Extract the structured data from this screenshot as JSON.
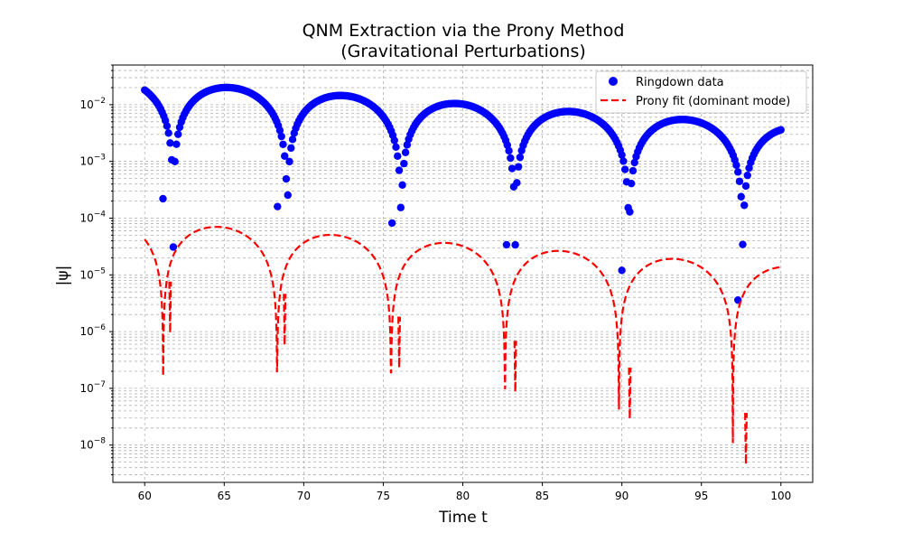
{
  "chart_data": {
    "type": "scatter",
    "title_line1": "QNM Extraction via the Prony Method",
    "title_line2": "(Gravitational Perturbations)",
    "xlabel": "Time t",
    "ylabel": "|ψ|",
    "xlim": [
      58,
      102
    ],
    "ylim": [
      2.2e-09,
      0.05
    ],
    "yscale": "log",
    "grid": true,
    "legend_position": "top-right",
    "x_ticks": [
      60,
      65,
      70,
      75,
      80,
      85,
      90,
      95,
      100
    ],
    "x_tick_labels": [
      "60",
      "65",
      "70",
      "75",
      "80",
      "85",
      "90",
      "95",
      "100"
    ],
    "y_ticks": [
      1e-08,
      1e-07,
      1e-06,
      1e-05,
      0.0001,
      0.001,
      0.01
    ],
    "y_tick_labels": [
      {
        "base": "10",
        "exp": "−8"
      },
      {
        "base": "10",
        "exp": "−7"
      },
      {
        "base": "10",
        "exp": "−6"
      },
      {
        "base": "10",
        "exp": "−5"
      },
      {
        "base": "10",
        "exp": "−4"
      },
      {
        "base": "10",
        "exp": "−3"
      },
      {
        "base": "10",
        "exp": "−2"
      }
    ],
    "series": [
      {
        "name": "Ringdown data",
        "kind": "scatter",
        "color": "#0000ff",
        "model": {
          "t_start": 60,
          "t_end": 100,
          "n_points": 400,
          "amplitude": 0.0255,
          "decay_rate": 0.0453,
          "frequency": 0.4386,
          "phase": 0.78
        },
        "extra_low_points": [
          {
            "x": 61.15,
            "y": 0.00022
          },
          {
            "x": 68.35,
            "y": 0.00016
          },
          {
            "x": 75.55,
            "y": 8.2e-05
          },
          {
            "x": 82.75,
            "y": 3.4e-05
          },
          {
            "x": 90.0,
            "y": 1.2e-05
          },
          {
            "x": 97.3,
            "y": 3.6e-06
          }
        ]
      },
      {
        "name": "Prony fit (dominant mode)",
        "kind": "line",
        "style": "dashed",
        "color": "#ff0000",
        "model": {
          "t_start": 60,
          "t_end": 100,
          "n_points": 2000,
          "amplitude": 8.65e-05,
          "decay_rate": 0.0453,
          "frequency": 0.4386,
          "phase": 1.06
        },
        "minima": [
          {
            "x": 61.6,
            "y": 9.5e-07
          },
          {
            "x": 68.8,
            "y": 5.8e-07
          },
          {
            "x": 76.0,
            "y": 2.3e-07
          },
          {
            "x": 83.3,
            "y": 8.6e-08
          },
          {
            "x": 90.5,
            "y": 2.9e-08
          },
          {
            "x": 97.8,
            "y": 4.6e-09
          }
        ]
      }
    ]
  }
}
